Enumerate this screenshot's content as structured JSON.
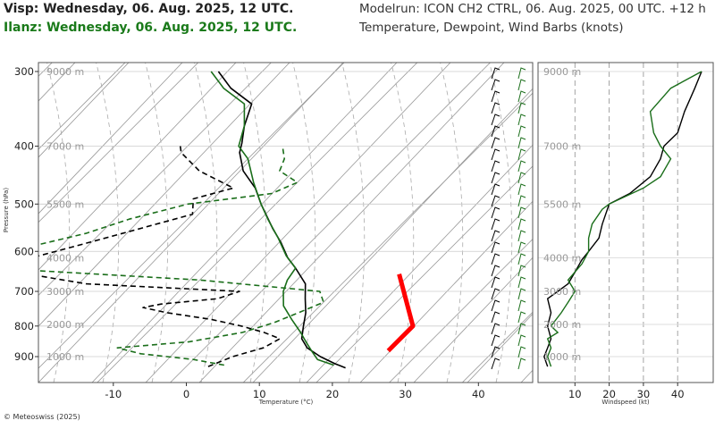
{
  "header": {
    "title_obs1": "Visp: Wednesday, 06. Aug. 2025, 12 UTC.",
    "title_obs2": "Ilanz: Wednesday, 06. Aug. 2025, 12 UTC.",
    "model_run": "Modelrun: ICON CH2 CTRL, 06. Aug. 2025, 00 UTC. +12 h",
    "variables": "Temperature, Dewpoint, Wind Barbs (knots)"
  },
  "footer": {
    "copyright": "© Meteoswiss (2025)"
  },
  "colors": {
    "visp": "#000000",
    "ilanz": "#1a6e1a",
    "parcel": "#ff0000",
    "grid": "#888888"
  },
  "chart_data": [
    {
      "type": "line",
      "subtype": "skew-t",
      "xlabel": "Temperature (°C)",
      "ylabel": "Pressure (hPa)",
      "xlim": [
        -20,
        47
      ],
      "ylim": [
        950,
        297
      ],
      "x_ticks": [
        -10,
        0,
        10,
        20,
        30,
        40
      ],
      "y_ticks": [
        300,
        400,
        500,
        600,
        700,
        800,
        900
      ],
      "altitude_labels": [
        {
          "label": "9000 m",
          "p": 300
        },
        {
          "label": "7000 m",
          "p": 400
        },
        {
          "label": "5500 m",
          "p": 500
        },
        {
          "label": "4000 m",
          "p": 615
        },
        {
          "label": "3000 m",
          "p": 700
        },
        {
          "label": "2000 m",
          "p": 795
        },
        {
          "label": "1000 m",
          "p": 900
        }
      ],
      "series": [
        {
          "name": "Visp",
          "kind": "temperature",
          "style": "solid",
          "points": [
            [
              940,
              22
            ],
            [
              925,
              20
            ],
            [
              900,
              17
            ],
            [
              870,
              14
            ],
            [
              840,
              12
            ],
            [
              800,
              10.5
            ],
            [
              760,
              9
            ],
            [
              720,
              7
            ],
            [
              680,
              5
            ],
            [
              640,
              1.5
            ],
            [
              615,
              -1
            ],
            [
              580,
              -4
            ],
            [
              550,
              -7
            ],
            [
              500,
              -12
            ],
            [
              470,
              -15
            ],
            [
              440,
              -19
            ],
            [
              410,
              -22
            ],
            [
              395,
              -23
            ],
            [
              370,
              -25
            ],
            [
              340,
              -27
            ],
            [
              320,
              -32
            ],
            [
              300,
              -36
            ]
          ]
        },
        {
          "name": "Visp",
          "kind": "dewpoint",
          "style": "dashed",
          "points": [
            [
              935,
              3
            ],
            [
              900,
              5
            ],
            [
              870,
              8
            ],
            [
              840,
              9
            ],
            [
              820,
              6
            ],
            [
              800,
              2
            ],
            [
              780,
              -3
            ],
            [
              760,
              -10
            ],
            [
              745,
              -14
            ],
            [
              735,
              -12
            ],
            [
              720,
              -5
            ],
            [
              700,
              -3
            ],
            [
              680,
              -25
            ],
            [
              640,
              -40
            ],
            [
              590,
              -32
            ],
            [
              560,
              -27
            ],
            [
              520,
              -20
            ],
            [
              490,
              -22
            ],
            [
              470,
              -18
            ],
            [
              440,
              -25
            ],
            [
              410,
              -30
            ],
            [
              400,
              -31
            ]
          ]
        },
        {
          "name": "Ilanz",
          "kind": "temperature",
          "style": "solid",
          "points": [
            [
              930,
              20
            ],
            [
              910,
              17
            ],
            [
              880,
              15
            ],
            [
              850,
              13
            ],
            [
              820,
              11
            ],
            [
              780,
              8
            ],
            [
              740,
              5
            ],
            [
              700,
              3
            ],
            [
              670,
              2
            ],
            [
              640,
              1.5
            ],
            [
              610,
              -1.5
            ],
            [
              570,
              -5
            ],
            [
              530,
              -9
            ],
            [
              500,
              -12
            ],
            [
              460,
              -16
            ],
            [
              420,
              -20
            ],
            [
              400,
              -23
            ],
            [
              370,
              -25
            ],
            [
              340,
              -28
            ],
            [
              320,
              -33
            ],
            [
              300,
              -37
            ]
          ]
        },
        {
          "name": "Ilanz",
          "kind": "dewpoint",
          "style": "dashed",
          "points": [
            [
              930,
              5
            ],
            [
              910,
              0
            ],
            [
              890,
              -8
            ],
            [
              870,
              -12
            ],
            [
              850,
              -3
            ],
            [
              820,
              3
            ],
            [
              790,
              6
            ],
            [
              760,
              8
            ],
            [
              730,
              10
            ],
            [
              700,
              8
            ],
            [
              670,
              -10
            ],
            [
              640,
              -40
            ],
            [
              590,
              -38
            ],
            [
              560,
              -32
            ],
            [
              530,
              -28
            ],
            [
              500,
              -22
            ],
            [
              480,
              -12
            ],
            [
              460,
              -10
            ],
            [
              440,
              -14
            ],
            [
              420,
              -15
            ],
            [
              400,
              -17
            ]
          ]
        },
        {
          "name": "Parcel",
          "kind": "parcel",
          "style": "solid",
          "points": [
            [
              880,
              25.5
            ],
            [
              800,
              25.5
            ],
            [
              655,
              16.5
            ]
          ]
        }
      ]
    },
    {
      "type": "line",
      "xlabel": "Windspeed (kt)",
      "xlim": [
        0,
        47
      ],
      "x_ticks": [
        10,
        20,
        30,
        40
      ],
      "altitude_labels": [
        {
          "label": "9000 m",
          "p": 300
        },
        {
          "label": "7000 m",
          "p": 400
        },
        {
          "label": "5500 m",
          "p": 500
        },
        {
          "label": "4000 m",
          "p": 615
        },
        {
          "label": "3000 m",
          "p": 700
        },
        {
          "label": "2000 m",
          "p": 795
        },
        {
          "label": "1000 m",
          "p": 900
        }
      ],
      "series": [
        {
          "name": "Visp",
          "points": [
            [
              935,
              2
            ],
            [
              900,
              1
            ],
            [
              870,
              2
            ],
            [
              840,
              3
            ],
            [
              800,
              2
            ],
            [
              760,
              3
            ],
            [
              720,
              2
            ],
            [
              700,
              5
            ],
            [
              680,
              8
            ],
            [
              650,
              10
            ],
            [
              620,
              12
            ],
            [
              600,
              14
            ],
            [
              570,
              17
            ],
            [
              540,
              18
            ],
            [
              500,
              20
            ],
            [
              480,
              26
            ],
            [
              450,
              32
            ],
            [
              420,
              35
            ],
            [
              400,
              36
            ],
            [
              380,
              40
            ],
            [
              350,
              42
            ],
            [
              320,
              45
            ],
            [
              300,
              47
            ]
          ]
        },
        {
          "name": "Ilanz",
          "points": [
            [
              935,
              3
            ],
            [
              900,
              2
            ],
            [
              870,
              3
            ],
            [
              840,
              2
            ],
            [
              820,
              5
            ],
            [
              800,
              3
            ],
            [
              760,
              6
            ],
            [
              730,
              8
            ],
            [
              700,
              10
            ],
            [
              670,
              8
            ],
            [
              630,
              12
            ],
            [
              600,
              14
            ],
            [
              570,
              14
            ],
            [
              540,
              15
            ],
            [
              510,
              18
            ],
            [
              500,
              20
            ],
            [
              470,
              30
            ],
            [
              450,
              35
            ],
            [
              420,
              38
            ],
            [
              400,
              35
            ],
            [
              380,
              33
            ],
            [
              350,
              32
            ],
            [
              320,
              38
            ],
            [
              300,
              47
            ]
          ]
        }
      ]
    }
  ]
}
